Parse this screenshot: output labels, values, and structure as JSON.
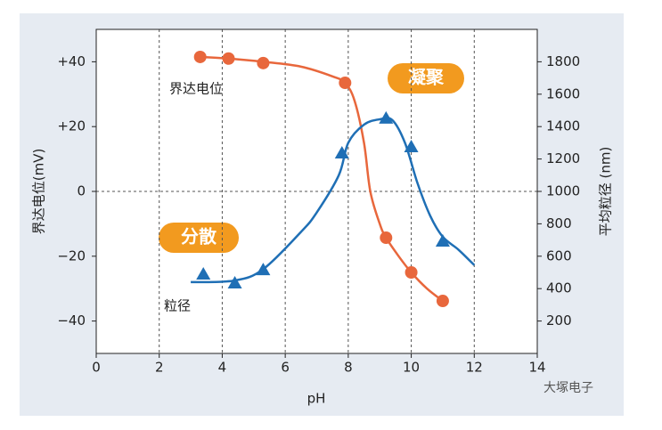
{
  "chart_data": {
    "type": "scatter",
    "x_label": "pH",
    "y_label": "界达电位(mV)",
    "y2_label": "平均粒径 (nm)",
    "xlim": [
      0,
      14
    ],
    "xticks": [
      0,
      2,
      4,
      6,
      8,
      10,
      12,
      14
    ],
    "ylim": [
      -50,
      50
    ],
    "yticks": [
      {
        "value": 40,
        "label": "+40"
      },
      {
        "value": 20,
        "label": "+20"
      },
      0,
      {
        "value": -20,
        "label": "−20"
      },
      {
        "value": -40,
        "label": "−40"
      }
    ],
    "y2lim": [
      0,
      2000
    ],
    "y2ticks": [
      200,
      400,
      600,
      800,
      1000,
      1200,
      1400,
      1600,
      1800
    ],
    "grid": true,
    "series": [
      {
        "name": "界达电位",
        "color": "#e8673c",
        "marker": "circle",
        "x": [
          3.3,
          4.2,
          5.3,
          7.9,
          9.2,
          10.0,
          11.0
        ],
        "values": [
          41.5,
          41,
          39.6,
          33.5,
          -14.3,
          -25,
          -33.8
        ],
        "curve_x": [
          3.3,
          4.2,
          5.3,
          6.5,
          7.5,
          7.9,
          8.2,
          8.5,
          8.7,
          9.0,
          9.2,
          9.6,
          10.0,
          10.5,
          11.0
        ],
        "curve_values": [
          41.5,
          41,
          40,
          38.5,
          35.5,
          33.5,
          28,
          15,
          0,
          -10,
          -14.3,
          -20,
          -25,
          -30,
          -33.8
        ]
      },
      {
        "name": "粒径",
        "color": "#1f6fb5",
        "marker": "triangle",
        "axis": "y2",
        "x": [
          3.4,
          4.4,
          5.3,
          7.8,
          9.2,
          10.0,
          11.0
        ],
        "values": [
          489,
          434,
          516,
          1236,
          1451,
          1275,
          692
        ],
        "curve_x": [
          3.0,
          4.4,
          5.3,
          6.5,
          7.0,
          7.7,
          8.0,
          8.5,
          9.0,
          9.4,
          9.8,
          10.2,
          10.6,
          11.0,
          11.5,
          12.0
        ],
        "curve_values": [
          440,
          450,
          520,
          750,
          870,
          1100,
          1300,
          1412,
          1445,
          1440,
          1300,
          1050,
          850,
          720,
          640,
          545
        ]
      }
    ],
    "annotations": [
      "凝聚",
      "分散"
    ],
    "watermark": "大塚电子"
  }
}
